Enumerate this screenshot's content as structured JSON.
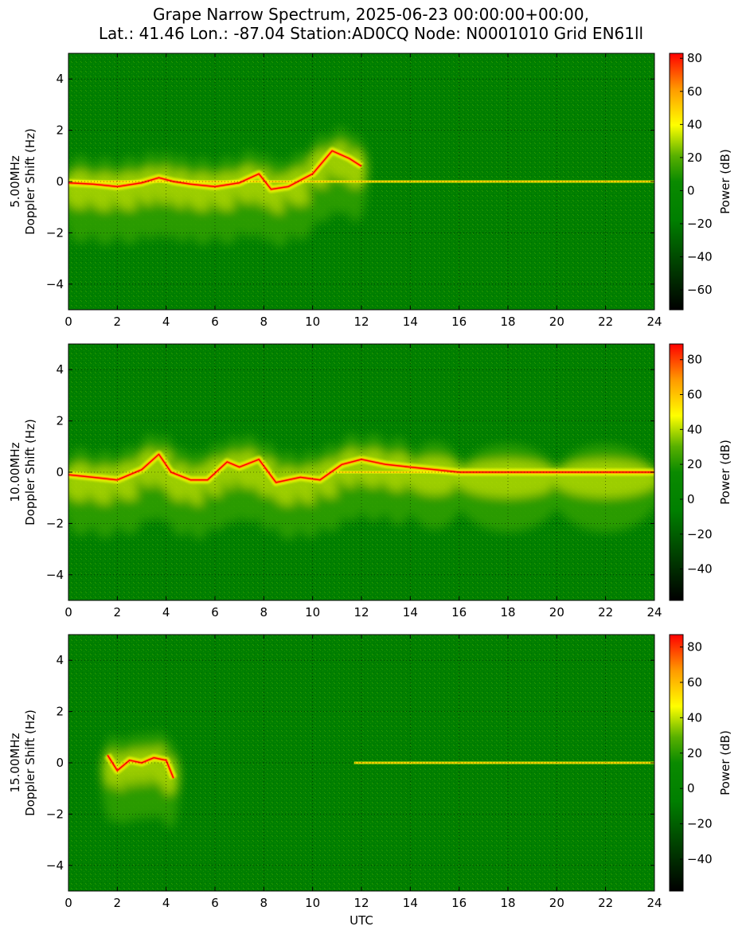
{
  "title_line1": "Grape Narrow Spectrum, 2025-06-23 00:00:00+00:00,",
  "title_line2": "Lat.: 41.46 Lon.: -87.04 Station:AD0CQ Node: N0001010 Grid EN61ll",
  "colors": {
    "background_green": "#007f00",
    "mid_green": "#30a000",
    "yellow": "#ffff00",
    "orange": "#ff9900",
    "red": "#ff0000",
    "black": "#000000"
  },
  "chart_data": [
    {
      "type": "heatmap",
      "name": "5.00MHz",
      "ylabel_line1": "5.00MHz",
      "ylabel_line2": "Doppler Shift (Hz)",
      "xlabel": "",
      "xlim": [
        0,
        24
      ],
      "ylim": [
        -5,
        5
      ],
      "x_ticks": [
        "0",
        "2",
        "4",
        "6",
        "8",
        "10",
        "12",
        "14",
        "16",
        "18",
        "20",
        "22",
        "24"
      ],
      "y_ticks": [
        "4",
        "2",
        "0",
        "−2",
        "−4"
      ],
      "grid": true,
      "colorbar": {
        "label": "Power (dB)",
        "range": [
          -72,
          83
        ],
        "ticks": [
          "80",
          "60",
          "40",
          "20",
          "0",
          "−20",
          "−40",
          "−60"
        ]
      },
      "activity_end_utc": 12.5,
      "carrier_start_utc": 0,
      "carrier_end_utc": 24,
      "trace": [
        [
          0,
          -0.05
        ],
        [
          1,
          -0.1
        ],
        [
          2,
          -0.2
        ],
        [
          3,
          -0.05
        ],
        [
          3.7,
          0.15
        ],
        [
          4.3,
          0.0
        ],
        [
          5,
          -0.1
        ],
        [
          6,
          -0.2
        ],
        [
          7,
          -0.05
        ],
        [
          7.8,
          0.3
        ],
        [
          8.3,
          -0.3
        ],
        [
          9,
          -0.2
        ],
        [
          10,
          0.3
        ],
        [
          10.8,
          1.2
        ],
        [
          11.5,
          0.9
        ],
        [
          12,
          0.6
        ]
      ]
    },
    {
      "type": "heatmap",
      "name": "10.00MHz",
      "ylabel_line1": "10.00MHz",
      "ylabel_line2": "Doppler Shift (Hz)",
      "xlabel": "",
      "xlim": [
        0,
        24
      ],
      "ylim": [
        -5,
        5
      ],
      "x_ticks": [
        "0",
        "2",
        "4",
        "6",
        "8",
        "10",
        "12",
        "14",
        "16",
        "18",
        "20",
        "22",
        "24"
      ],
      "y_ticks": [
        "4",
        "2",
        "0",
        "−2",
        "−4"
      ],
      "grid": true,
      "colorbar": {
        "label": "Power (dB)",
        "range": [
          -58,
          89
        ],
        "ticks": [
          "80",
          "60",
          "40",
          "20",
          "0",
          "−20",
          "−40"
        ]
      },
      "activity_end_utc": 24,
      "carrier_start_utc": 11,
      "carrier_end_utc": 24,
      "trace": [
        [
          0,
          -0.1
        ],
        [
          1,
          -0.2
        ],
        [
          2,
          -0.3
        ],
        [
          3,
          0.1
        ],
        [
          3.7,
          0.7
        ],
        [
          4.2,
          0.0
        ],
        [
          5,
          -0.3
        ],
        [
          5.7,
          -0.3
        ],
        [
          6.5,
          0.4
        ],
        [
          7,
          0.2
        ],
        [
          7.8,
          0.5
        ],
        [
          8.5,
          -0.4
        ],
        [
          9.5,
          -0.2
        ],
        [
          10.3,
          -0.3
        ],
        [
          11.2,
          0.3
        ],
        [
          12,
          0.5
        ],
        [
          13,
          0.3
        ],
        [
          14,
          0.2
        ],
        [
          16,
          0.0
        ],
        [
          20,
          0.0
        ],
        [
          24,
          0.0
        ]
      ]
    },
    {
      "type": "heatmap",
      "name": "15.00MHz",
      "ylabel_line1": "15.00MHz",
      "ylabel_line2": "Doppler Shift (Hz)",
      "xlabel": "UTC",
      "xlim": [
        0,
        24
      ],
      "ylim": [
        -5,
        5
      ],
      "x_ticks": [
        "0",
        "2",
        "4",
        "6",
        "8",
        "10",
        "12",
        "14",
        "16",
        "18",
        "20",
        "22",
        "24"
      ],
      "y_ticks": [
        "4",
        "2",
        "0",
        "−2",
        "−4"
      ],
      "grid": true,
      "colorbar": {
        "label": "Power (dB)",
        "range": [
          -58,
          87
        ],
        "ticks": [
          "80",
          "60",
          "40",
          "20",
          "0",
          "−20",
          "−40"
        ]
      },
      "activity_end_utc": 24,
      "carrier_start_utc": 11.7,
      "carrier_end_utc": 24,
      "trace": [
        [
          1.6,
          0.3
        ],
        [
          2,
          -0.3
        ],
        [
          2.5,
          0.1
        ],
        [
          3,
          0.0
        ],
        [
          3.5,
          0.2
        ],
        [
          4,
          0.1
        ],
        [
          4.3,
          -0.6
        ]
      ]
    }
  ]
}
